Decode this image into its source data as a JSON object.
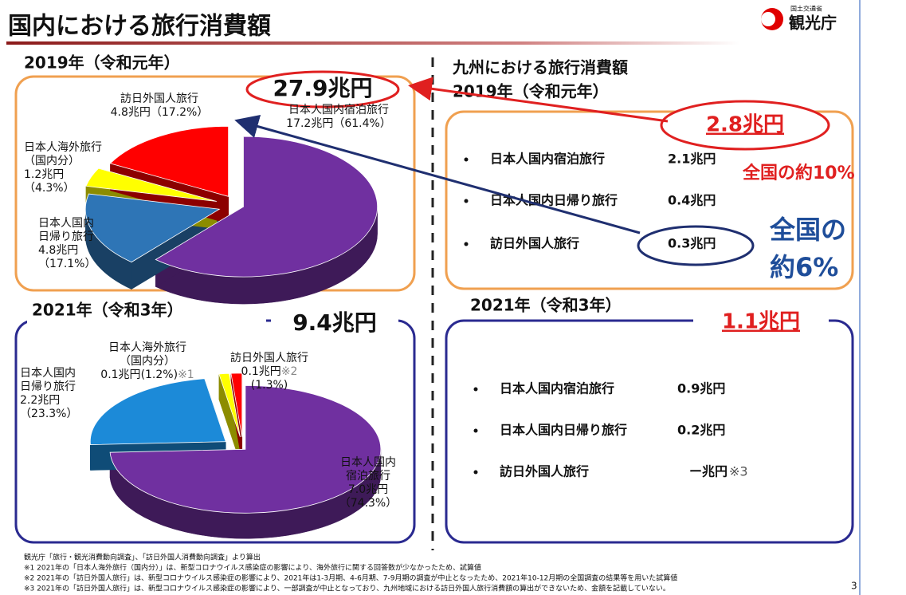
{
  "header": {
    "title": "国内における旅行消費額",
    "ministry": "国土交通省",
    "agency": "観光庁"
  },
  "chart_data": [
    {
      "type": "pie",
      "title": "2019年（令和元年）",
      "total": "27.9兆円",
      "categories": [
        [
          "日本人国内宿泊旅行"
        ],
        [
          "日本人国内",
          "日帰り旅行"
        ],
        [
          "日本人海外旅行",
          "（国内分）"
        ],
        [
          "訪日外国人旅行"
        ]
      ],
      "amounts": [
        "17.2兆円",
        "4.8兆円",
        "1.2兆円",
        "4.8兆円"
      ],
      "values": [
        61.4,
        17.1,
        4.3,
        17.2
      ],
      "value_labels": [
        "（61.4%）",
        "（17.1%）",
        "（4.3%）",
        "（17.2%）"
      ],
      "colors": [
        "#7030a0",
        "#2e75b6",
        "#ffff00",
        "#ff0000"
      ]
    },
    {
      "type": "pie",
      "title": "2021年（令和3年）",
      "total": "9.4兆円",
      "categories": [
        [
          "日本人国内",
          "宿泊旅行"
        ],
        [
          "日本人国内",
          "日帰り旅行"
        ],
        [
          "日本人海外旅行",
          "（国内分）"
        ],
        [
          "訪日外国人旅行"
        ]
      ],
      "amounts": [
        "7.0兆円",
        "2.2兆円",
        "0.1兆円",
        "0.1兆円"
      ],
      "notes": [
        null,
        null,
        "※1",
        "※2"
      ],
      "values": [
        74.3,
        23.3,
        1.2,
        1.3
      ],
      "value_labels": [
        "（74.3%）",
        "（23.3%）",
        "(1.2%)",
        "(1.3%)"
      ],
      "colors": [
        "#7030a0",
        "#1c8ad8",
        "#ffff00",
        "#ff0000"
      ]
    }
  ],
  "kyushu": {
    "title": "九州における旅行消費額",
    "y2019": {
      "heading": "2019年（令和元年）",
      "total": "2.8兆円",
      "items": [
        {
          "label": "日本人国内宿泊旅行",
          "amount": "2.1兆円"
        },
        {
          "label": "日本人国内日帰り旅行",
          "amount": "0.4兆円"
        },
        {
          "label": "訪日外国人旅行",
          "amount": "0.3兆円"
        }
      ],
      "share_total": "全国の約10%",
      "share_inbound": [
        "全国の",
        "約6%"
      ]
    },
    "y2021": {
      "heading": "2021年（令和3年）",
      "total": "1.1兆円",
      "items": [
        {
          "label": "日本人国内宿泊旅行",
          "amount": "0.9兆円"
        },
        {
          "label": "日本人国内日帰り旅行",
          "amount": "0.2兆円"
        },
        {
          "label": "訪日外国人旅行",
          "amount": "ー兆円",
          "note": "※3"
        }
      ]
    }
  },
  "footnotes": [
    "観光庁「旅行・観光消費動向調査」、「訪日外国人消費動向調査」より算出",
    "※1 2021年の「日本人海外旅行（国内分）」は、新型コロナウイルス感染症の影響により、海外旅行に関する回答数が少なかったため、試算値",
    "※2 2021年の「訪日外国人旅行」は、新型コロナウイルス感染症の影響により、2021年は1-3月期、4-6月期、7-9月期の調査が中止となったため、2021年10-12月期の全国調査の結果等を用いた試算値",
    "※3 2021年の「訪日外国人旅行」は、新型コロナウイルス感染症の影響により、一部調査が中止となっており、九州地域における訪日外国人旅行消費額の算出ができないため、金額を記載していない。"
  ],
  "page_number": "3"
}
